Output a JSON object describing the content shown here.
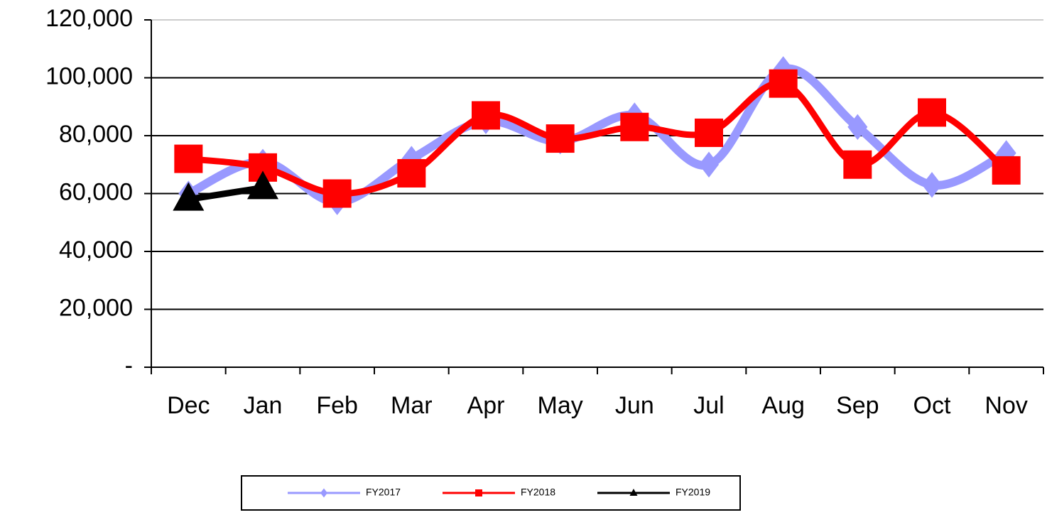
{
  "chart_data": {
    "type": "line",
    "categories": [
      "Dec",
      "Jan",
      "Feb",
      "Mar",
      "Apr",
      "May",
      "Jun",
      "Jul",
      "Aug",
      "Sep",
      "Oct",
      "Nov"
    ],
    "series": [
      {
        "name": "FY2017",
        "color": "#9999ff",
        "marker": "diamond",
        "values": [
          60000,
          71000,
          57000,
          72000,
          85000,
          78000,
          87000,
          70000,
          103000,
          83000,
          63000,
          74000
        ]
      },
      {
        "name": "FY2018",
        "color": "#ff0000",
        "marker": "square",
        "values": [
          72000,
          69000,
          60000,
          67000,
          87000,
          79000,
          83000,
          81000,
          98000,
          70000,
          88000,
          68000
        ]
      },
      {
        "name": "FY2019",
        "color": "#000000",
        "marker": "triangle",
        "values": [
          58000,
          62000,
          null,
          null,
          null,
          null,
          null,
          null,
          null,
          null,
          null,
          null
        ]
      }
    ],
    "ylim": [
      0,
      120000
    ],
    "yticks": [
      {
        "value": 0,
        "label": "-"
      },
      {
        "value": 20000,
        "label": "20,000"
      },
      {
        "value": 40000,
        "label": "40,000"
      },
      {
        "value": 60000,
        "label": "60,000"
      },
      {
        "value": 80000,
        "label": "80,000"
      },
      {
        "value": 100000,
        "label": "100,000"
      },
      {
        "value": 120000,
        "label": "120,000"
      }
    ],
    "grid": true,
    "smooth": true,
    "legend": "bottom"
  }
}
